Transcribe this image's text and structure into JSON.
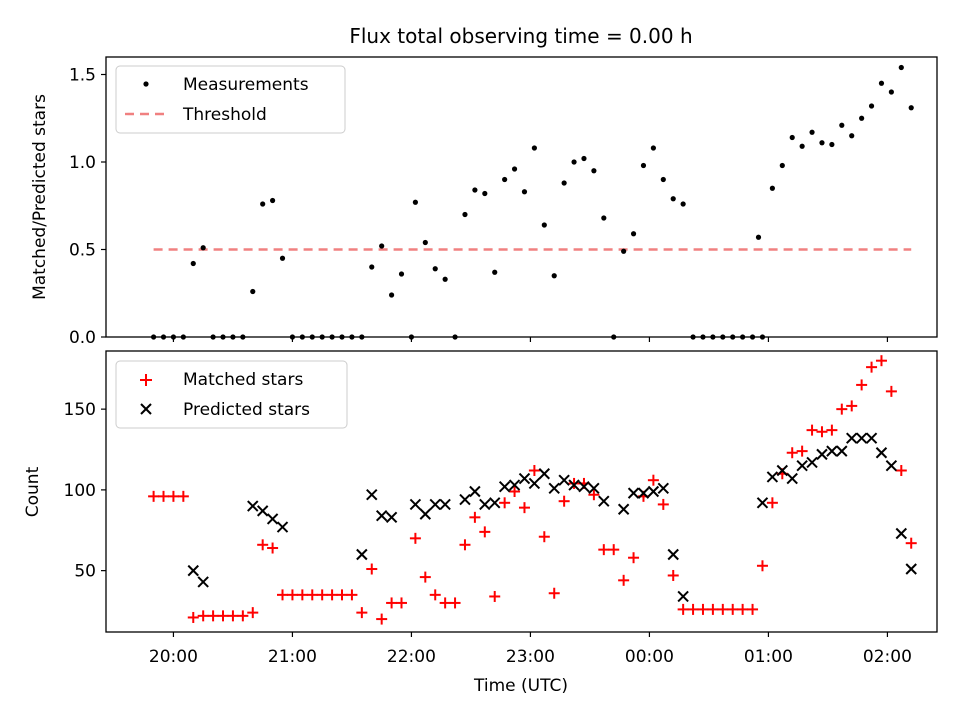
{
  "title": "Flux total observing time = 0.00 h",
  "xlabel": "Time (UTC)",
  "x_ticks": [
    "20:00",
    "21:00",
    "22:00",
    "23:00",
    "00:00",
    "01:00",
    "02:00"
  ],
  "chart_data": [
    {
      "type": "scatter",
      "title": "Flux total observing time = 0.00 h",
      "ylabel": "Matched/Predicted stars",
      "xlim": [
        "19:26",
        "02:25"
      ],
      "ylim": [
        0,
        1.6
      ],
      "y_ticks": [
        "0.0",
        "0.5",
        "1.0",
        "1.5"
      ],
      "legend_position": "top-left",
      "threshold": {
        "name": "Threshold",
        "value": 0.5,
        "x_start": "19:50",
        "x_end": "02:12",
        "color": "#f08080"
      },
      "series": [
        {
          "name": "Measurements",
          "color": "#000000",
          "points": [
            [
              "19:50",
              0.0
            ],
            [
              "19:55",
              0.0
            ],
            [
              "20:00",
              0.0
            ],
            [
              "20:05",
              0.0
            ],
            [
              "20:10",
              0.42
            ],
            [
              "20:15",
              0.51
            ],
            [
              "20:20",
              0.0
            ],
            [
              "20:25",
              0.0
            ],
            [
              "20:30",
              0.0
            ],
            [
              "20:35",
              0.0
            ],
            [
              "20:40",
              0.26
            ],
            [
              "20:45",
              0.76
            ],
            [
              "20:50",
              0.78
            ],
            [
              "20:55",
              0.45
            ],
            [
              "21:00",
              0.0
            ],
            [
              "21:05",
              0.0
            ],
            [
              "21:10",
              0.0
            ],
            [
              "21:15",
              0.0
            ],
            [
              "21:20",
              0.0
            ],
            [
              "21:25",
              0.0
            ],
            [
              "21:30",
              0.0
            ],
            [
              "21:35",
              0.0
            ],
            [
              "21:40",
              0.4
            ],
            [
              "21:45",
              0.52
            ],
            [
              "21:50",
              0.24
            ],
            [
              "21:55",
              0.36
            ],
            [
              "22:00",
              0.0
            ],
            [
              "22:02",
              0.77
            ],
            [
              "22:07",
              0.54
            ],
            [
              "22:12",
              0.39
            ],
            [
              "22:17",
              0.33
            ],
            [
              "22:22",
              0.0
            ],
            [
              "22:27",
              0.7
            ],
            [
              "22:32",
              0.84
            ],
            [
              "22:37",
              0.82
            ],
            [
              "22:42",
              0.37
            ],
            [
              "22:47",
              0.9
            ],
            [
              "22:52",
              0.96
            ],
            [
              "22:57",
              0.83
            ],
            [
              "23:02",
              1.08
            ],
            [
              "23:07",
              0.64
            ],
            [
              "23:12",
              0.35
            ],
            [
              "23:17",
              0.88
            ],
            [
              "23:22",
              1.0
            ],
            [
              "23:27",
              1.02
            ],
            [
              "23:32",
              0.95
            ],
            [
              "23:37",
              0.68
            ],
            [
              "23:42",
              0.0
            ],
            [
              "23:47",
              0.49
            ],
            [
              "23:52",
              0.59
            ],
            [
              "23:57",
              0.98
            ],
            [
              "00:02",
              1.08
            ],
            [
              "00:07",
              0.9
            ],
            [
              "00:12",
              0.79
            ],
            [
              "00:17",
              0.76
            ],
            [
              "00:22",
              0.0
            ],
            [
              "00:27",
              0.0
            ],
            [
              "00:32",
              0.0
            ],
            [
              "00:37",
              0.0
            ],
            [
              "00:42",
              0.0
            ],
            [
              "00:47",
              0.0
            ],
            [
              "00:52",
              0.0
            ],
            [
              "00:57",
              0.0
            ],
            [
              "00:55",
              0.57
            ],
            [
              "01:02",
              0.85
            ],
            [
              "01:07",
              0.98
            ],
            [
              "01:12",
              1.14
            ],
            [
              "01:17",
              1.09
            ],
            [
              "01:22",
              1.17
            ],
            [
              "01:27",
              1.11
            ],
            [
              "01:32",
              1.1
            ],
            [
              "01:37",
              1.21
            ],
            [
              "01:42",
              1.15
            ],
            [
              "01:47",
              1.25
            ],
            [
              "01:52",
              1.32
            ],
            [
              "01:57",
              1.45
            ],
            [
              "02:02",
              1.4
            ],
            [
              "02:07",
              1.54
            ],
            [
              "02:12",
              1.31
            ]
          ]
        }
      ]
    },
    {
      "type": "scatter",
      "ylabel": "Count",
      "xlabel": "Time (UTC)",
      "xlim": [
        "19:26",
        "02:25"
      ],
      "ylim": [
        12,
        186
      ],
      "y_ticks": [
        "50",
        "100",
        "150"
      ],
      "legend_position": "top-left",
      "series": [
        {
          "name": "Matched stars",
          "marker": "+",
          "color": "#ff0000",
          "points": [
            [
              "19:50",
              96
            ],
            [
              "19:55",
              96
            ],
            [
              "20:00",
              96
            ],
            [
              "20:05",
              96
            ],
            [
              "20:10",
              21
            ],
            [
              "20:15",
              22
            ],
            [
              "20:20",
              22
            ],
            [
              "20:25",
              22
            ],
            [
              "20:30",
              22
            ],
            [
              "20:35",
              22
            ],
            [
              "20:40",
              24
            ],
            [
              "20:45",
              66
            ],
            [
              "20:50",
              64
            ],
            [
              "20:55",
              35
            ],
            [
              "21:00",
              35
            ],
            [
              "21:05",
              35
            ],
            [
              "21:10",
              35
            ],
            [
              "21:15",
              35
            ],
            [
              "21:20",
              35
            ],
            [
              "21:25",
              35
            ],
            [
              "21:30",
              35
            ],
            [
              "21:35",
              24
            ],
            [
              "21:40",
              51
            ],
            [
              "21:45",
              20
            ],
            [
              "21:50",
              30
            ],
            [
              "21:55",
              30
            ],
            [
              "22:02",
              70
            ],
            [
              "22:07",
              46
            ],
            [
              "22:12",
              35
            ],
            [
              "22:17",
              30
            ],
            [
              "22:22",
              30
            ],
            [
              "22:27",
              66
            ],
            [
              "22:32",
              83
            ],
            [
              "22:37",
              74
            ],
            [
              "22:42",
              34
            ],
            [
              "22:47",
              92
            ],
            [
              "22:52",
              99
            ],
            [
              "22:57",
              89
            ],
            [
              "23:02",
              112
            ],
            [
              "23:07",
              71
            ],
            [
              "23:12",
              36
            ],
            [
              "23:17",
              93
            ],
            [
              "23:22",
              104
            ],
            [
              "23:27",
              104
            ],
            [
              "23:32",
              97
            ],
            [
              "23:37",
              63
            ],
            [
              "23:42",
              63
            ],
            [
              "23:47",
              44
            ],
            [
              "23:52",
              58
            ],
            [
              "23:57",
              96
            ],
            [
              "00:02",
              106
            ],
            [
              "00:07",
              91
            ],
            [
              "00:12",
              47
            ],
            [
              "00:17",
              26
            ],
            [
              "00:22",
              26
            ],
            [
              "00:27",
              26
            ],
            [
              "00:32",
              26
            ],
            [
              "00:37",
              26
            ],
            [
              "00:42",
              26
            ],
            [
              "00:47",
              26
            ],
            [
              "00:52",
              26
            ],
            [
              "00:57",
              53
            ],
            [
              "01:02",
              92
            ],
            [
              "01:07",
              110
            ],
            [
              "01:12",
              123
            ],
            [
              "01:17",
              124
            ],
            [
              "01:22",
              137
            ],
            [
              "01:27",
              136
            ],
            [
              "01:32",
              137
            ],
            [
              "01:37",
              150
            ],
            [
              "01:42",
              152
            ],
            [
              "01:47",
              165
            ],
            [
              "01:52",
              176
            ],
            [
              "01:57",
              180
            ],
            [
              "02:02",
              161
            ],
            [
              "02:07",
              112
            ],
            [
              "02:12",
              67
            ]
          ]
        },
        {
          "name": "Predicted stars",
          "marker": "x",
          "color": "#000000",
          "points": [
            [
              "20:10",
              50
            ],
            [
              "20:15",
              43
            ],
            [
              "20:40",
              90
            ],
            [
              "20:45",
              87
            ],
            [
              "20:50",
              82
            ],
            [
              "20:55",
              77
            ],
            [
              "21:35",
              60
            ],
            [
              "21:40",
              97
            ],
            [
              "21:45",
              84
            ],
            [
              "21:50",
              83
            ],
            [
              "22:02",
              91
            ],
            [
              "22:07",
              85
            ],
            [
              "22:12",
              91
            ],
            [
              "22:17",
              91
            ],
            [
              "22:27",
              94
            ],
            [
              "22:32",
              99
            ],
            [
              "22:37",
              91
            ],
            [
              "22:42",
              92
            ],
            [
              "22:47",
              102
            ],
            [
              "22:52",
              103
            ],
            [
              "22:57",
              107
            ],
            [
              "23:02",
              104
            ],
            [
              "23:07",
              110
            ],
            [
              "23:12",
              101
            ],
            [
              "23:17",
              106
            ],
            [
              "23:22",
              103
            ],
            [
              "23:27",
              102
            ],
            [
              "23:32",
              101
            ],
            [
              "23:37",
              93
            ],
            [
              "23:47",
              88
            ],
            [
              "23:52",
              98
            ],
            [
              "23:57",
              98
            ],
            [
              "00:02",
              99
            ],
            [
              "00:07",
              101
            ],
            [
              "00:12",
              60
            ],
            [
              "00:17",
              34
            ],
            [
              "00:57",
              92
            ],
            [
              "01:02",
              108
            ],
            [
              "01:07",
              112
            ],
            [
              "01:12",
              107
            ],
            [
              "01:17",
              115
            ],
            [
              "01:22",
              117
            ],
            [
              "01:27",
              122
            ],
            [
              "01:32",
              124
            ],
            [
              "01:37",
              124
            ],
            [
              "01:42",
              132
            ],
            [
              "01:47",
              132
            ],
            [
              "01:52",
              132
            ],
            [
              "01:57",
              123
            ],
            [
              "02:02",
              115
            ],
            [
              "02:07",
              73
            ],
            [
              "02:12",
              51
            ]
          ]
        }
      ]
    }
  ]
}
